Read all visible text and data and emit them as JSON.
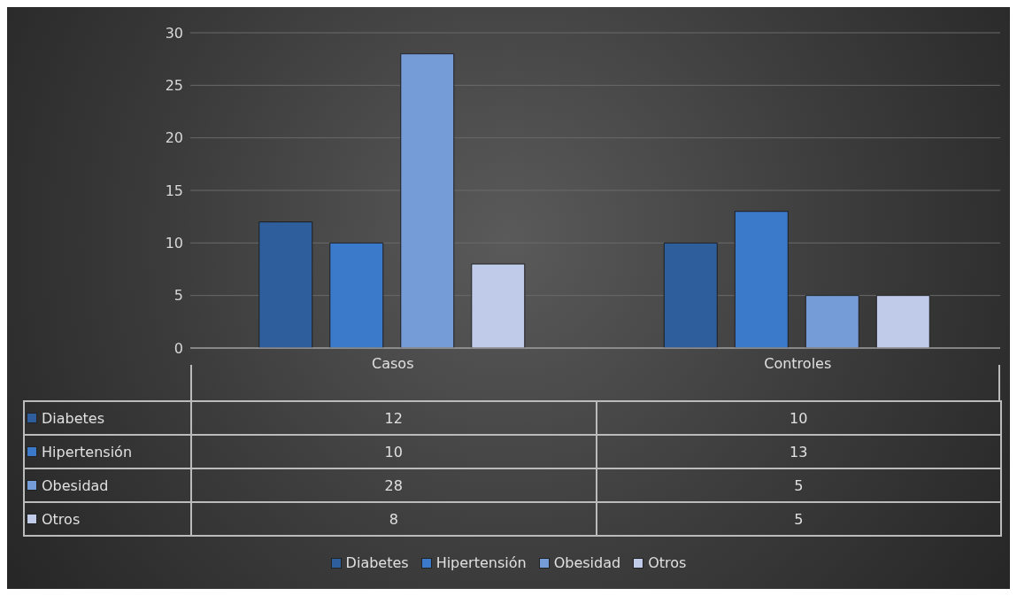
{
  "chart_data": {
    "type": "bar",
    "categories": [
      "Casos",
      "Controles"
    ],
    "series": [
      {
        "name": "Diabetes",
        "color": "#2e5e9c",
        "values": [
          12,
          10
        ]
      },
      {
        "name": "Hipertensión",
        "color": "#3b7acb",
        "values": [
          10,
          13
        ]
      },
      {
        "name": "Obesidad",
        "color": "#759cd6",
        "values": [
          28,
          5
        ]
      },
      {
        "name": "Otros",
        "color": "#bfcbe8",
        "values": [
          8,
          5
        ]
      }
    ],
    "ylim": [
      0,
      30
    ],
    "yticks": [
      0,
      5,
      10,
      15,
      20,
      25,
      30
    ],
    "grid": "y",
    "legend": "bottom",
    "data_labels": true
  }
}
